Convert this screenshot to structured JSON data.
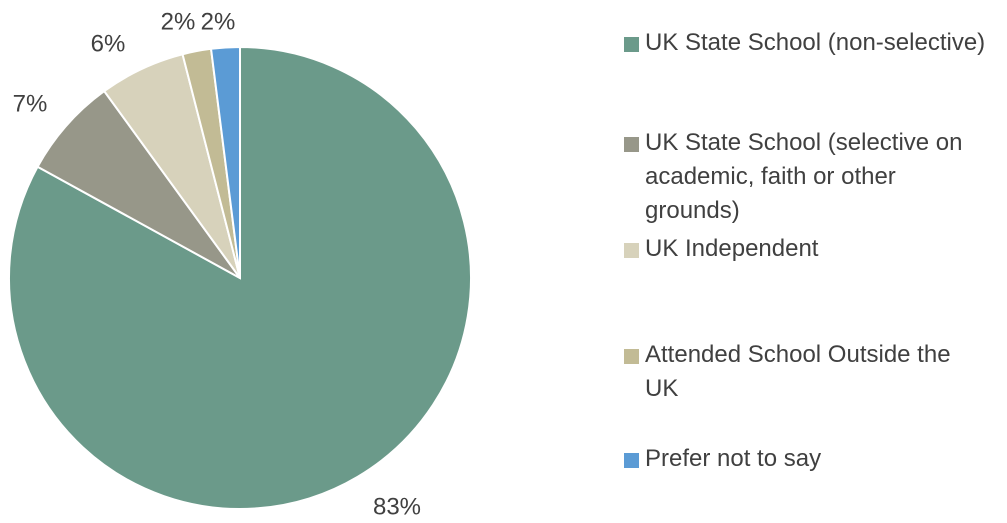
{
  "chart_data": {
    "type": "pie",
    "title": "",
    "categories": [
      "UK State School (non-selective)",
      "UK State School (selective on academic, faith or other grounds)",
      "UK Independent",
      "Attended School Outside the UK",
      "Prefer not to say"
    ],
    "values": [
      83,
      7,
      6,
      2,
      2
    ],
    "data_labels": [
      "83%",
      "7%",
      "6%",
      "2%",
      "2%"
    ],
    "colors": [
      "#6b9a8a",
      "#979789",
      "#d7d2bb",
      "#c2bb95",
      "#5b9bd5"
    ],
    "legend_position": "right",
    "start_angle": "12 o'clock",
    "direction": "clockwise"
  },
  "legend": {
    "items": [
      {
        "label": "UK State School (non-selective)",
        "color": "#6b9a8a"
      },
      {
        "label": "UK State School (selective on academic, faith or other grounds)",
        "color": "#979789"
      },
      {
        "label": "UK Independent",
        "color": "#d7d2bb"
      },
      {
        "label": "Attended School Outside the UK",
        "color": "#c2bb95"
      },
      {
        "label": "Prefer not to say",
        "color": "#5b9bd5"
      }
    ]
  }
}
